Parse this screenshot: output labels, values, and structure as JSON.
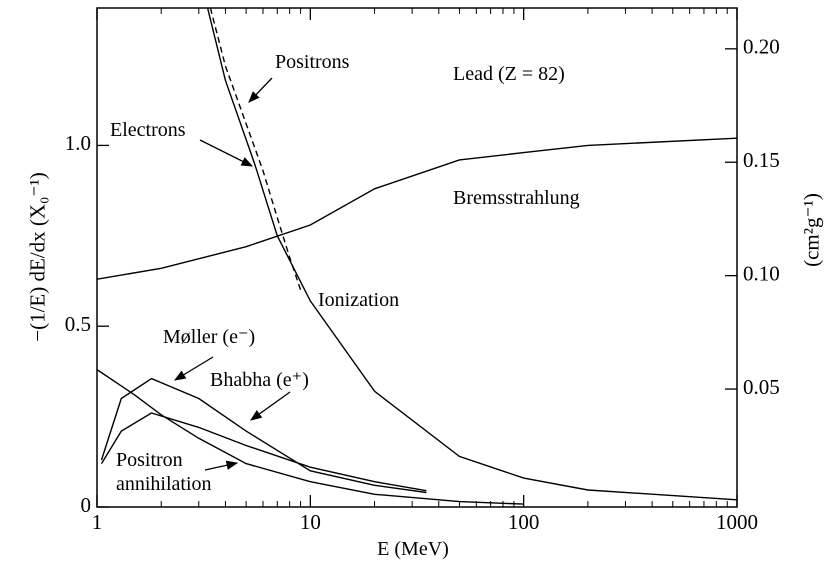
{
  "chart_data": {
    "type": "line",
    "annotation": "Lead (Z = 82)",
    "xlabel": "E (MeV)",
    "ylabel": "−(1/E) dE/dx (X₀⁻¹)",
    "y2label": "(cm²g⁻¹)",
    "xscale": "log",
    "xlim": [
      1,
      1000
    ],
    "xticks": [
      1,
      10,
      100,
      1000
    ],
    "ylim": [
      0,
      1.38
    ],
    "yticks": [
      0,
      0.5,
      {
        "value": 1,
        "label": "1.0"
      }
    ],
    "y2lim": [
      -0.002,
      0.218
    ],
    "y2ticks": [
      0.05,
      {
        "value": 0.1,
        "label": "0.10"
      },
      0.15,
      {
        "value": 0.2,
        "label": "0.20"
      }
    ],
    "series": [
      {
        "name": "Electrons",
        "color": "#000000",
        "dash": false,
        "x": [
          3.3,
          4,
          5.5,
          7,
          10,
          20,
          50,
          100,
          200,
          1000
        ],
        "values": [
          1.38,
          1.18,
          0.947,
          0.75,
          0.57,
          0.32,
          0.14,
          0.08,
          0.047,
          0.02
        ]
      },
      {
        "name": "Positrons",
        "color": "#000000",
        "dash": true,
        "x": [
          3.4,
          4,
          5,
          6,
          7,
          8,
          9
        ],
        "values": [
          1.38,
          1.22,
          1.06,
          0.93,
          0.8,
          0.69,
          0.6
        ]
      },
      {
        "name": "Bremsstrahlung",
        "color": "#000000",
        "dash": false,
        "x": [
          1,
          2,
          5,
          10,
          20,
          50,
          100,
          200,
          1000
        ],
        "values": [
          0.63,
          0.66,
          0.72,
          0.78,
          0.88,
          0.96,
          0.98,
          1.0,
          1.02
        ]
      },
      {
        "name": "Møller (e⁻)",
        "color": "#000000",
        "dash": false,
        "x": [
          1.05,
          1.3,
          1.8,
          3,
          5,
          10,
          20,
          35
        ],
        "values": [
          0.13,
          0.3,
          0.355,
          0.3,
          0.21,
          0.1,
          0.06,
          0.04
        ]
      },
      {
        "name": "Bhabha (e⁺)",
        "color": "#000000",
        "dash": false,
        "x": [
          1.05,
          1.3,
          1.8,
          3,
          5,
          10,
          20,
          35
        ],
        "values": [
          0.12,
          0.21,
          0.26,
          0.22,
          0.17,
          0.11,
          0.07,
          0.045
        ]
      },
      {
        "name": "Positron annihilation",
        "color": "#000000",
        "dash": false,
        "x": [
          1,
          1.5,
          2,
          3,
          5,
          10,
          20,
          50,
          100
        ],
        "values": [
          0.38,
          0.31,
          0.255,
          0.19,
          0.12,
          0.07,
          0.035,
          0.015,
          0.008
        ]
      }
    ],
    "ionization_label": "Ionization"
  }
}
